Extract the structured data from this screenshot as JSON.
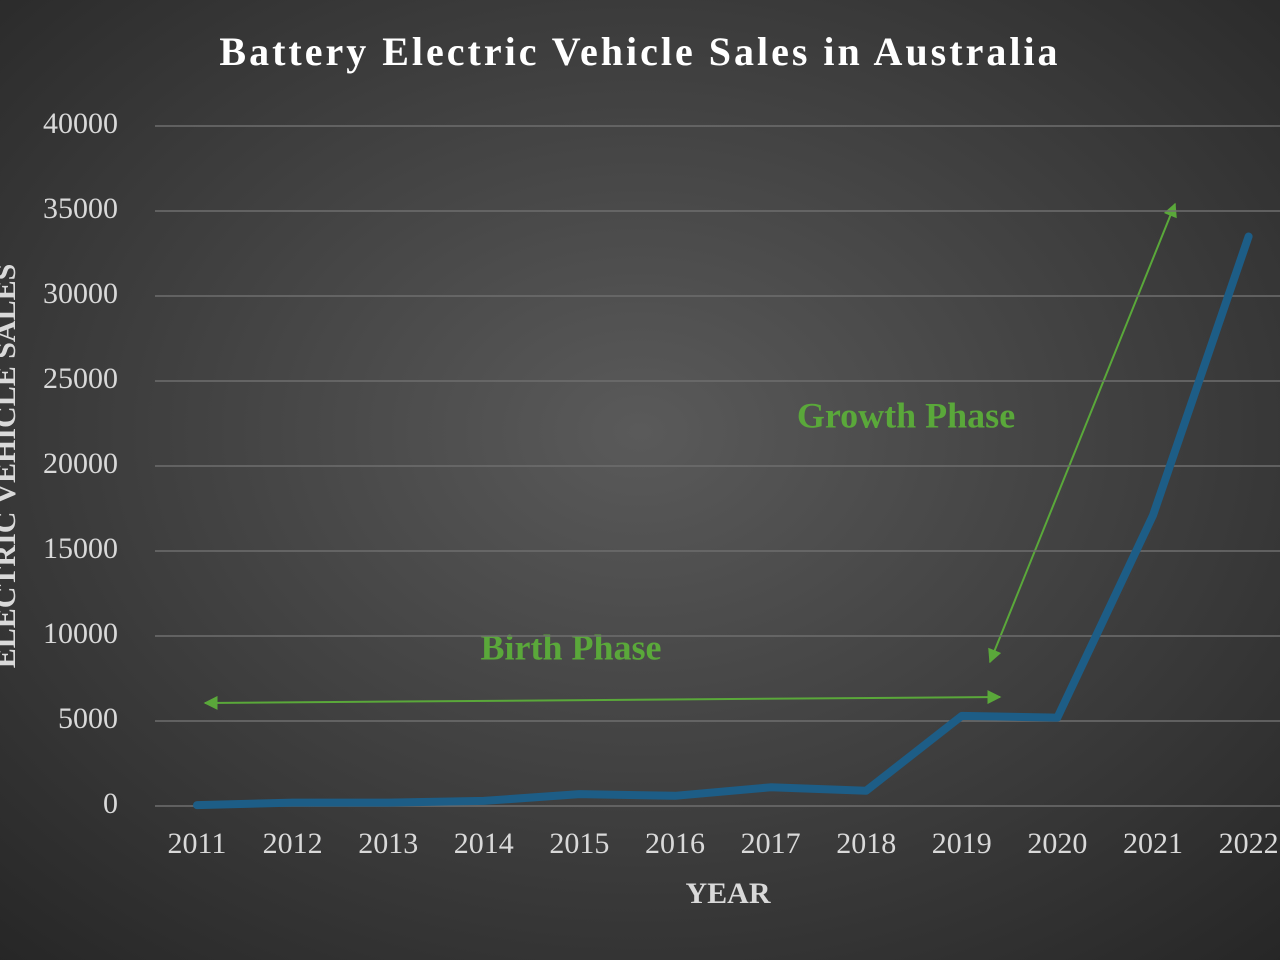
{
  "chart_data": {
    "type": "line",
    "title": "Battery Electric Vehicle Sales in Australia",
    "x_label": "YEAR",
    "y_label": "ELECTRIC VEHICLE SALES",
    "categories": [
      "2011",
      "2012",
      "2013",
      "2014",
      "2015",
      "2016",
      "2017",
      "2018",
      "2019",
      "2020",
      "2021",
      "2022"
    ],
    "values": [
      50,
      200,
      200,
      300,
      700,
      600,
      1100,
      900,
      5300,
      5200,
      17100,
      33500
    ],
    "color": "#1d5d86",
    "ylim": [
      0,
      40000
    ],
    "yticks": [
      0,
      5000,
      10000,
      15000,
      20000,
      25000,
      30000,
      35000,
      40000
    ],
    "grid": true,
    "annotations": [
      "Birth Phase",
      "Growth Phase"
    ]
  }
}
